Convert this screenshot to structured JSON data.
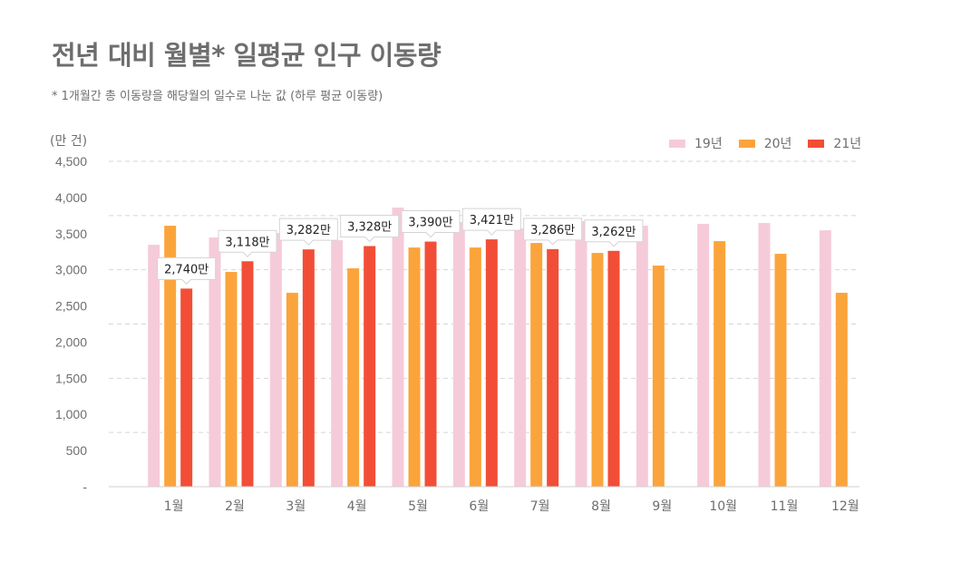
{
  "header": {
    "title": "전년 대비 월별* 일평균 인구 이동량",
    "subtitle": "* 1개월간 총 이동량을 해당월의 일수로 나눈 값 (하루 평균 이동량)",
    "unit": "(만 건)"
  },
  "chart_data": {
    "type": "bar",
    "title": "전년 대비 월별* 일평균 인구 이동량",
    "subtitle": "* 1개월간 총 이동량을 해당월의 일수로 나눈 값 (하루 평균 이동량)",
    "xlabel": "",
    "ylabel": "(만 건)",
    "ylim": [
      0,
      4500
    ],
    "yticks": [
      0,
      500,
      1000,
      1500,
      2000,
      2500,
      3000,
      3500,
      4000,
      4500
    ],
    "ytick_labels": [
      "-",
      "500",
      "1,000",
      "1,500",
      "2,000",
      "2,500",
      "3,000",
      "3,500",
      "4,000",
      "4,500"
    ],
    "gridlines": [
      750,
      1500,
      2250,
      3000,
      3750,
      4500
    ],
    "grid": true,
    "legend_position": "top-right",
    "categories": [
      "1월",
      "2월",
      "3월",
      "4월",
      "5월",
      "6월",
      "7월",
      "8월",
      "9월",
      "10월",
      "11월",
      "12월"
    ],
    "series": [
      {
        "name": "19년",
        "color": "#f6cbd9",
        "values": [
          3346,
          3446,
          3509,
          3409,
          3860,
          3659,
          3571,
          3672,
          3609,
          3634,
          3647,
          3546
        ]
      },
      {
        "name": "20년",
        "color": "#fba43c",
        "values": [
          3609,
          2970,
          2682,
          3020,
          3308,
          3308,
          3371,
          3233,
          3058,
          3396,
          3221,
          2682
        ]
      },
      {
        "name": "21년",
        "color": "#f24e37",
        "values": [
          2740,
          3118,
          3282,
          3328,
          3390,
          3421,
          3286,
          3262,
          null,
          null,
          null,
          null
        ]
      }
    ],
    "annotations": [
      {
        "category": "1월",
        "series": "21년",
        "text": "2,740만"
      },
      {
        "category": "2월",
        "series": "21년",
        "text": "3,118만"
      },
      {
        "category": "3월",
        "series": "21년",
        "text": "3,282만"
      },
      {
        "category": "4월",
        "series": "21년",
        "text": "3,328만"
      },
      {
        "category": "5월",
        "series": "21년",
        "text": "3,390만"
      },
      {
        "category": "6월",
        "series": "21년",
        "text": "3,421만"
      },
      {
        "category": "7월",
        "series": "21년",
        "text": "3,286만"
      },
      {
        "category": "8월",
        "series": "21년",
        "text": "3,262만"
      }
    ]
  }
}
